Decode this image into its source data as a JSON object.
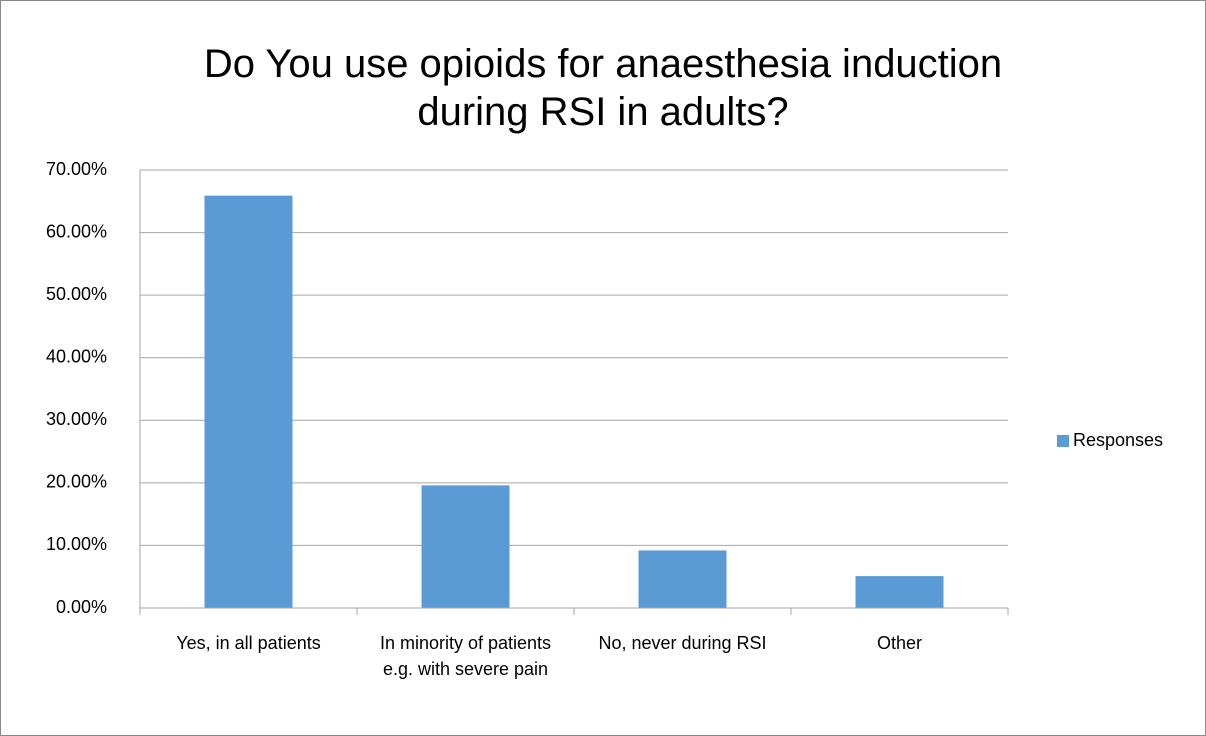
{
  "chart_data": {
    "type": "bar",
    "title": "Do You use opioids for anaesthesia induction during RSI in adults?",
    "categories": [
      "Yes, in all patients",
      "In minority of patients e.g. with severe pain",
      "No, never during RSI",
      "Other"
    ],
    "series": [
      {
        "name": "Responses",
        "color": "#5b9bd5",
        "values": [
          65.9,
          19.6,
          9.2,
          5.1
        ]
      }
    ],
    "ylim": [
      0,
      70
    ],
    "yticks": [
      {
        "value": 0,
        "label": "0.00%"
      },
      {
        "value": 10,
        "label": "10.00%"
      },
      {
        "value": 20,
        "label": "20.00%"
      },
      {
        "value": 30,
        "label": "30.00%"
      },
      {
        "value": 40,
        "label": "40.00%"
      },
      {
        "value": 50,
        "label": "50.00%"
      },
      {
        "value": 60,
        "label": "60.00%"
      },
      {
        "value": 70,
        "label": "70.00%"
      }
    ],
    "grid": true,
    "legend": "right"
  }
}
